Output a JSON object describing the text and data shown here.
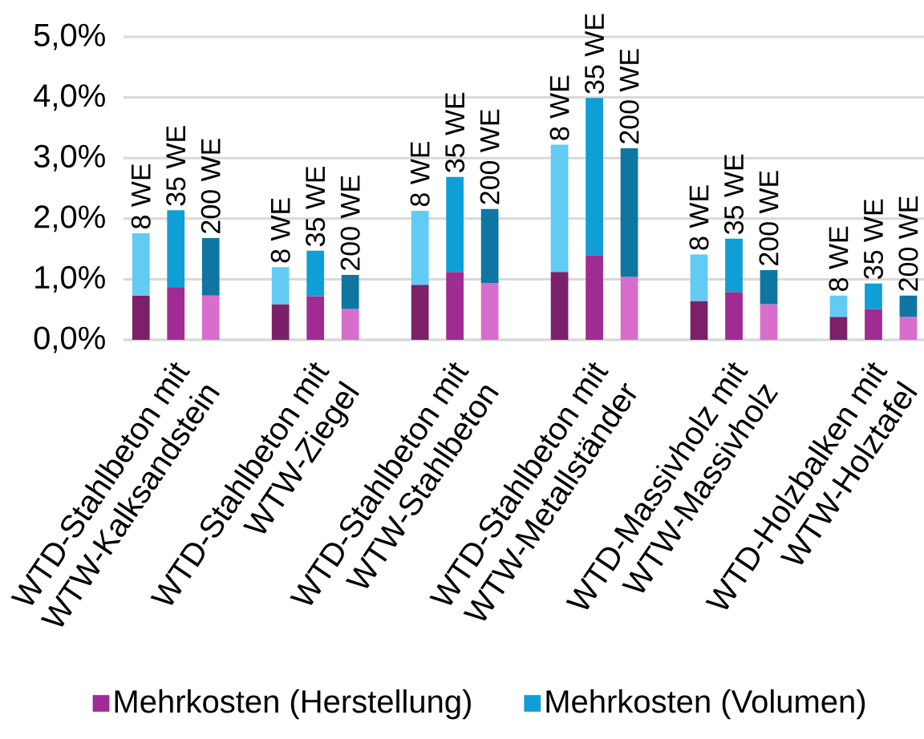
{
  "chart_data": {
    "type": "bar",
    "stacked": true,
    "categories": [
      "8 WE",
      "35 WE",
      "200 WE",
      null,
      "8 WE",
      "35 WE",
      "200 WE",
      null,
      "8 WE",
      "35 WE",
      "200 WE",
      null,
      "8 WE",
      "35 WE",
      "200 WE",
      null,
      "8 WE",
      "35 WE",
      "200 WE",
      null,
      "8 WE",
      "35 WE",
      "200 WE"
    ],
    "series": [
      {
        "name": "Mehrkosten (Herstellung)",
        "color": "#a02b93",
        "values": [
          0.73,
          0.86,
          0.73,
          null,
          0.59,
          0.72,
          0.51,
          null,
          0.91,
          1.12,
          0.94,
          null,
          1.12,
          1.4,
          1.04,
          null,
          0.64,
          0.79,
          0.59,
          null,
          0.38,
          0.51,
          0.38
        ],
        "colors": [
          "#7b2069",
          "#a02b93",
          "#d86ecc",
          null,
          "#7b2069",
          "#a02b93",
          "#d86ecc",
          null,
          "#7b2069",
          "#a02b93",
          "#d86ecc",
          null,
          "#7b2069",
          "#a02b93",
          "#d86ecc",
          null,
          "#7b2069",
          "#a02b93",
          "#d86ecc",
          null,
          "#7b2069",
          "#a02b93",
          "#d86ecc"
        ]
      },
      {
        "name": "Mehrkosten (Volumen)",
        "color": "#0f9ed5",
        "values": [
          1.03,
          1.28,
          0.95,
          null,
          0.61,
          0.75,
          0.56,
          null,
          1.22,
          1.57,
          1.22,
          null,
          2.1,
          2.59,
          2.12,
          null,
          0.77,
          0.88,
          0.56,
          null,
          0.35,
          0.42,
          0.35
        ],
        "colors": [
          "#61cbf3",
          "#0f9ed5",
          "#0e76a0",
          null,
          "#61cbf3",
          "#0f9ed5",
          "#0e76a0",
          null,
          "#61cbf3",
          "#0f9ed5",
          "#0e76a0",
          null,
          "#61cbf3",
          "#0f9ed5",
          "#0e76a0",
          null,
          "#61cbf3",
          "#0f9ed5",
          "#0e76a0",
          null,
          "#61cbf3",
          "#0f9ed5",
          "#0e76a0"
        ]
      }
    ],
    "annotations": [
      "WTD-Stahlbeton mit WTW-Kalksandstein",
      "WTD-Stahlbeton mit WTW-Ziegel",
      "WTD-Stahlbeton mit WTW-Stahlbeton",
      "WTD-Stahlbeton mit WTW-Metallständer",
      "WTD-Massivholz mit WTW-Massivholz",
      "WTD-Holzbalken mit WTW-Holztafel"
    ],
    "ylim": [
      0,
      5
    ],
    "yticks": [
      {
        "value": 0,
        "label": "0,0%"
      },
      {
        "value": 1,
        "label": "1,0%"
      },
      {
        "value": 2,
        "label": "2,0%"
      },
      {
        "value": 3,
        "label": "3,0%"
      },
      {
        "value": 4,
        "label": "4,0%"
      },
      {
        "value": 5,
        "label": "5,0%"
      }
    ],
    "grid": "y",
    "legend": "bottom"
  }
}
